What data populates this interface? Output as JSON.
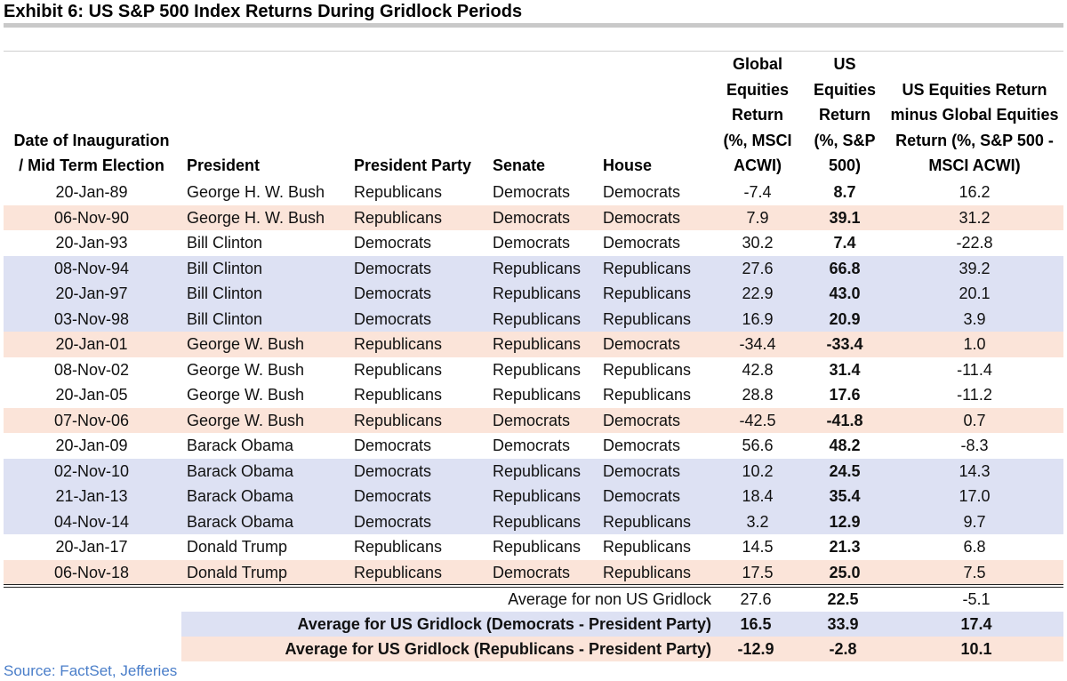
{
  "title": "Exhibit 6: US S&P 500 Index Returns During Gridlock Periods",
  "headers": {
    "date": [
      "Date of Inauguration",
      "/ Mid Term Election"
    ],
    "president": "President",
    "party": "President Party",
    "senate": "Senate",
    "house": "House",
    "global": [
      "Global",
      "Equities",
      "Return",
      "(%, MSCI",
      "ACWI)"
    ],
    "us": [
      "US",
      "Equities",
      "Return",
      "(%, S&P",
      "500)"
    ],
    "diff": [
      "US Equities Return",
      "minus Global Equities",
      "Return (%, S&P 500 -",
      "MSCI ACWI)"
    ]
  },
  "rows": [
    {
      "date": "20-Jan-89",
      "president": "George H. W. Bush",
      "party": "Republicans",
      "senate": "Democrats",
      "house": "Democrats",
      "global": "-7.4",
      "us": "8.7",
      "diff": "16.2",
      "highlight": "none"
    },
    {
      "date": "06-Nov-90",
      "president": "George H. W. Bush",
      "party": "Republicans",
      "senate": "Democrats",
      "house": "Democrats",
      "global": "7.9",
      "us": "39.1",
      "diff": "31.2",
      "highlight": "peach"
    },
    {
      "date": "20-Jan-93",
      "president": "Bill Clinton",
      "party": "Democrats",
      "senate": "Democrats",
      "house": "Democrats",
      "global": "30.2",
      "us": "7.4",
      "diff": "-22.8",
      "highlight": "none"
    },
    {
      "date": "08-Nov-94",
      "president": "Bill Clinton",
      "party": "Democrats",
      "senate": "Republicans",
      "house": "Republicans",
      "global": "27.6",
      "us": "66.8",
      "diff": "39.2",
      "highlight": "blue"
    },
    {
      "date": "20-Jan-97",
      "president": "Bill Clinton",
      "party": "Democrats",
      "senate": "Republicans",
      "house": "Republicans",
      "global": "22.9",
      "us": "43.0",
      "diff": "20.1",
      "highlight": "blue"
    },
    {
      "date": "03-Nov-98",
      "president": "Bill Clinton",
      "party": "Democrats",
      "senate": "Republicans",
      "house": "Republicans",
      "global": "16.9",
      "us": "20.9",
      "diff": "3.9",
      "highlight": "blue"
    },
    {
      "date": "20-Jan-01",
      "president": "George W. Bush",
      "party": "Republicans",
      "senate": "Republicans",
      "house": "Democrats",
      "global": "-34.4",
      "us": "-33.4",
      "diff": "1.0",
      "highlight": "peach"
    },
    {
      "date": "08-Nov-02",
      "president": "George W. Bush",
      "party": "Republicans",
      "senate": "Republicans",
      "house": "Republicans",
      "global": "42.8",
      "us": "31.4",
      "diff": "-11.4",
      "highlight": "none"
    },
    {
      "date": "20-Jan-05",
      "president": "George W. Bush",
      "party": "Republicans",
      "senate": "Republicans",
      "house": "Republicans",
      "global": "28.8",
      "us": "17.6",
      "diff": "-11.2",
      "highlight": "none"
    },
    {
      "date": "07-Nov-06",
      "president": "George W. Bush",
      "party": "Republicans",
      "senate": "Democrats",
      "house": "Democrats",
      "global": "-42.5",
      "us": "-41.8",
      "diff": "0.7",
      "highlight": "peach"
    },
    {
      "date": "20-Jan-09",
      "president": "Barack Obama",
      "party": "Democrats",
      "senate": "Democrats",
      "house": "Democrats",
      "global": "56.6",
      "us": "48.2",
      "diff": "-8.3",
      "highlight": "none"
    },
    {
      "date": "02-Nov-10",
      "president": "Barack Obama",
      "party": "Democrats",
      "senate": "Republicans",
      "house": "Democrats",
      "global": "10.2",
      "us": "24.5",
      "diff": "14.3",
      "highlight": "blue"
    },
    {
      "date": "21-Jan-13",
      "president": "Barack Obama",
      "party": "Democrats",
      "senate": "Republicans",
      "house": "Democrats",
      "global": "18.4",
      "us": "35.4",
      "diff": "17.0",
      "highlight": "blue"
    },
    {
      "date": "04-Nov-14",
      "president": "Barack Obama",
      "party": "Democrats",
      "senate": "Republicans",
      "house": "Republicans",
      "global": "3.2",
      "us": "12.9",
      "diff": "9.7",
      "highlight": "blue"
    },
    {
      "date": "20-Jan-17",
      "president": "Donald Trump",
      "party": "Republicans",
      "senate": "Republicans",
      "house": "Republicans",
      "global": "14.5",
      "us": "21.3",
      "diff": "6.8",
      "highlight": "none"
    },
    {
      "date": "06-Nov-18",
      "president": "Donald Trump",
      "party": "Republicans",
      "senate": "Democrats",
      "house": "Republicans",
      "global": "17.5",
      "us": "25.0",
      "diff": "7.5",
      "highlight": "peach"
    }
  ],
  "averages": {
    "non_gridlock": {
      "label": "Average for non US Gridlock",
      "global": "27.6",
      "us": "22.5",
      "diff": "-5.1"
    },
    "dem_gridlock": {
      "label": "Average for US Gridlock (Democrats - President Party)",
      "global": "16.5",
      "us": "33.9",
      "diff": "17.4"
    },
    "rep_gridlock": {
      "label": "Average for US Gridlock (Republicans - President Party)",
      "global": "-12.9",
      "us": "-2.8",
      "diff": "10.1"
    }
  },
  "colors": {
    "blue_highlight": "#dde1f3",
    "peach_highlight": "#fbe4d9",
    "source_text": "#4a7ec9"
  },
  "source": "Source: FactSet, Jefferies"
}
